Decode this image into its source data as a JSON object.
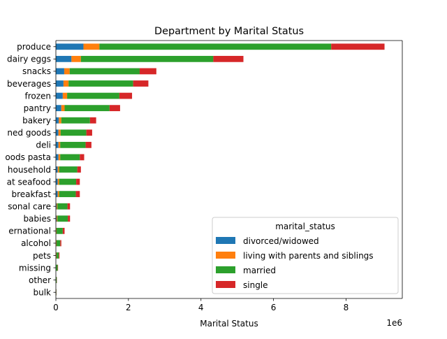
{
  "chart_data": {
    "type": "bar",
    "orientation": "horizontal",
    "stacked": true,
    "title": "Department by Marital Status",
    "xlabel": "Marital Status",
    "ylabel": "",
    "x_scale_label": "1e6",
    "xlim": [
      0,
      9.55
    ],
    "x_ticks": [
      0,
      2,
      4,
      6,
      8
    ],
    "grid": false,
    "legend": {
      "title": "marital_status",
      "position": "lower-right"
    },
    "categories": [
      "produce",
      "dairy eggs",
      "snacks",
      "beverages",
      "frozen",
      "pantry",
      "bakery",
      "canned goods",
      "deli",
      "dry goods pasta",
      "household",
      "meat seafood",
      "breakfast",
      "personal care",
      "babies",
      "international",
      "alcohol",
      "pets",
      "missing",
      "other",
      "bulk"
    ],
    "category_labels": [
      "produce",
      "dairy eggs",
      "snacks",
      "beverages",
      "frozen",
      "pantry",
      "bakery",
      "ned goods",
      "deli",
      "oods pasta",
      "household",
      "at seafood",
      "breakfast",
      "sonal care",
      "babies",
      "ernational",
      "alcohol",
      "pets",
      "missing",
      "other",
      "bulk"
    ],
    "series": [
      {
        "name": "divorced/widowed",
        "color": "#1f77b4",
        "values": [
          0.76,
          0.43,
          0.23,
          0.21,
          0.19,
          0.15,
          0.08,
          0.07,
          0.07,
          0.07,
          0.05,
          0.05,
          0.05,
          0.02,
          0.02,
          0.01,
          0.01,
          0.01,
          0.005,
          0.003,
          0.002
        ]
      },
      {
        "name": "living with parents and siblings",
        "color": "#ff7f0e",
        "values": [
          0.44,
          0.26,
          0.15,
          0.14,
          0.12,
          0.09,
          0.07,
          0.06,
          0.05,
          0.05,
          0.04,
          0.04,
          0.04,
          0.02,
          0.02,
          0.01,
          0.01,
          0.01,
          0.005,
          0.002,
          0.002
        ]
      },
      {
        "name": "married",
        "color": "#2ca02c",
        "values": [
          6.39,
          3.65,
          1.93,
          1.78,
          1.44,
          1.24,
          0.79,
          0.71,
          0.7,
          0.54,
          0.5,
          0.47,
          0.46,
          0.28,
          0.29,
          0.17,
          0.1,
          0.06,
          0.04,
          0.02,
          0.01
        ]
      },
      {
        "name": "single",
        "color": "#d62728",
        "values": [
          1.47,
          0.83,
          0.46,
          0.42,
          0.35,
          0.29,
          0.17,
          0.16,
          0.16,
          0.12,
          0.1,
          0.1,
          0.11,
          0.07,
          0.06,
          0.05,
          0.03,
          0.02,
          0.01,
          0.005,
          0.003
        ]
      }
    ]
  }
}
